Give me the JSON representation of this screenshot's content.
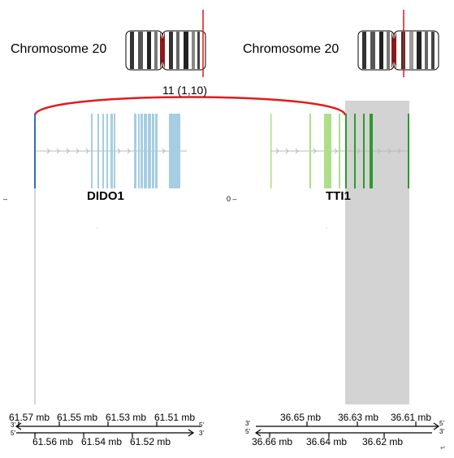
{
  "left": {
    "chromosome_label": "Chromosome 20",
    "gene_label": "DIDO1",
    "coverage_tick": "–",
    "axis_top_ticks": [
      "61.57 mb",
      "61.55 mb",
      "61.53 mb",
      "61.51 mb"
    ],
    "axis_bottom_ticks": [
      "61.56 mb",
      "61.54 mb",
      "61.52 mb"
    ],
    "strand_left_top": "3'",
    "strand_left_bottom": "5'",
    "strand_right_top": "5'",
    "strand_right_bottom": "3'",
    "gene_color": "#a6cde2",
    "breakpoint_color": "#2e6fbf"
  },
  "right": {
    "chromosome_label": "Chromosome 20",
    "gene_label": "TTI1",
    "coverage_tick": "0 –",
    "axis_top_ticks": [
      "36.65 mb",
      "36.63 mb",
      "36.61 mb"
    ],
    "axis_bottom_ticks": [
      "36.66 mb",
      "36.64 mb",
      "36.62 mb"
    ],
    "strand_left_top": "3'",
    "strand_left_bottom": "5'",
    "strand_right_top": "5'",
    "strand_right_bottom": "3'",
    "gene_color_light": "#addf8a",
    "gene_color_dark": "#2b9a2b",
    "highlight_color": "#d3d3d3"
  },
  "fusion": {
    "label": "11 (1,10)",
    "arc_color": "#e31a1c",
    "ideogram_marker_color": "#d7191c"
  },
  "corner_mark": "↵"
}
